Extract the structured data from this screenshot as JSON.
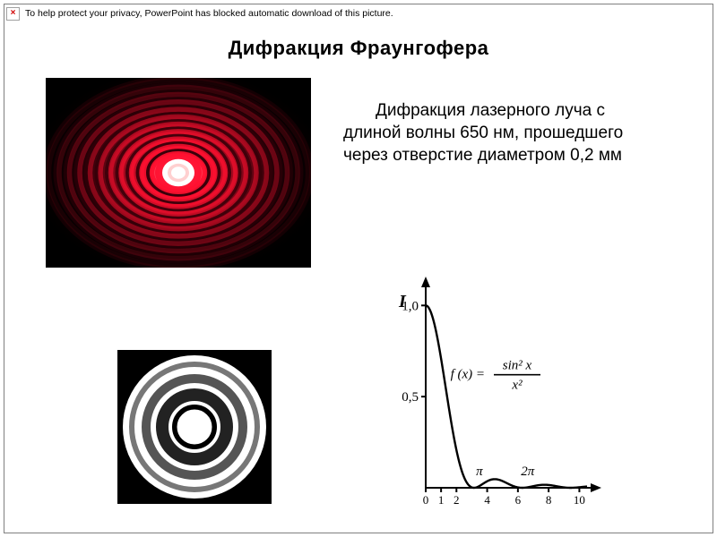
{
  "blocked": {
    "icon_symbol": "×",
    "message": "To help protect your privacy, PowerPoint has blocked automatic download of this picture."
  },
  "title": "Дифракция Фраунгофера",
  "description": "Дифракция лазерного луча с длиной волны 650 нм, прошедшего через отверстие диаметром 0,2 мм",
  "laser": {
    "background": "#000000",
    "center_color": "#ffffff",
    "glow_inner": "#ffd0d0",
    "ring_bright": "#ff1030",
    "ring_dark": "#300008",
    "ring_count": 11,
    "center_radius": 18
  },
  "airy": {
    "background": "#000000",
    "ring_color": "#ffffff",
    "rings": [
      {
        "r": 22,
        "stroke": "#000000",
        "sw": 6,
        "fill": "#ffffff"
      },
      {
        "r": 36,
        "stroke": "#222222",
        "sw": 14,
        "fill": "none"
      },
      {
        "r": 54,
        "stroke": "#555555",
        "sw": 10,
        "fill": "none"
      },
      {
        "r": 70,
        "stroke": "#777777",
        "sw": 6,
        "fill": "none"
      }
    ]
  },
  "sinc": {
    "axis_color": "#000000",
    "curve_color": "#000000",
    "y_label": "I",
    "y_ticks": [
      {
        "v": 1.0,
        "label": "1,0"
      },
      {
        "v": 0.5,
        "label": "0,5"
      }
    ],
    "x_ticks": [
      {
        "v": 0,
        "label": "0"
      },
      {
        "v": 1,
        "label": "1"
      },
      {
        "v": 2,
        "label": "2"
      },
      {
        "v": 4,
        "label": "4"
      },
      {
        "v": 6,
        "label": "6"
      },
      {
        "v": 8,
        "label": "8"
      },
      {
        "v": 10,
        "label": "10"
      }
    ],
    "pi_marks": [
      {
        "v": 3.1416,
        "label": "π"
      },
      {
        "v": 6.2832,
        "label": "2π"
      }
    ],
    "formula_lhs": "f (x) =",
    "formula_num": "sin² x",
    "formula_den": "x²",
    "xlim": [
      0,
      10.5
    ],
    "ylim": [
      0,
      1.08
    ],
    "line_width": 2.4,
    "font_size": 15
  }
}
